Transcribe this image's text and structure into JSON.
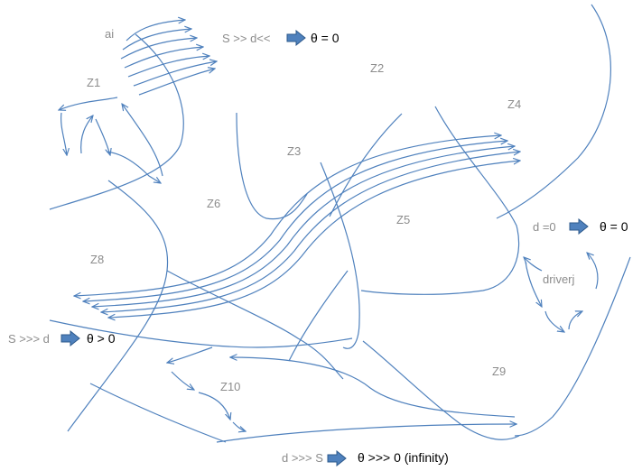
{
  "labels": {
    "ai": "ai",
    "driverj": "driverj",
    "zones": {
      "z1": "Z1",
      "z2": "Z2",
      "z3": "Z3",
      "z4": "Z4",
      "z5": "Z5",
      "z6": "Z6",
      "z8": "Z8",
      "z9": "Z9",
      "z10": "Z10"
    }
  },
  "conditions": [
    {
      "left": "S >> d<<",
      "right": "θ =  0"
    },
    {
      "left": "d  =0",
      "right": "θ =  0"
    },
    {
      "left": "S >>> d",
      "right": "θ >  0"
    },
    {
      "left": "d >>> S",
      "right": "θ >>>  0  (infinity)"
    }
  ],
  "colors": {
    "curve": "#4f81bd",
    "arrow_fill": "#4f81bd",
    "arrow_dark": "#2e5a8c",
    "label_grey": "#8c8c8c",
    "label_dark": "#000000"
  },
  "icons": {
    "condition_arrow": "block-right-arrow-icon"
  }
}
